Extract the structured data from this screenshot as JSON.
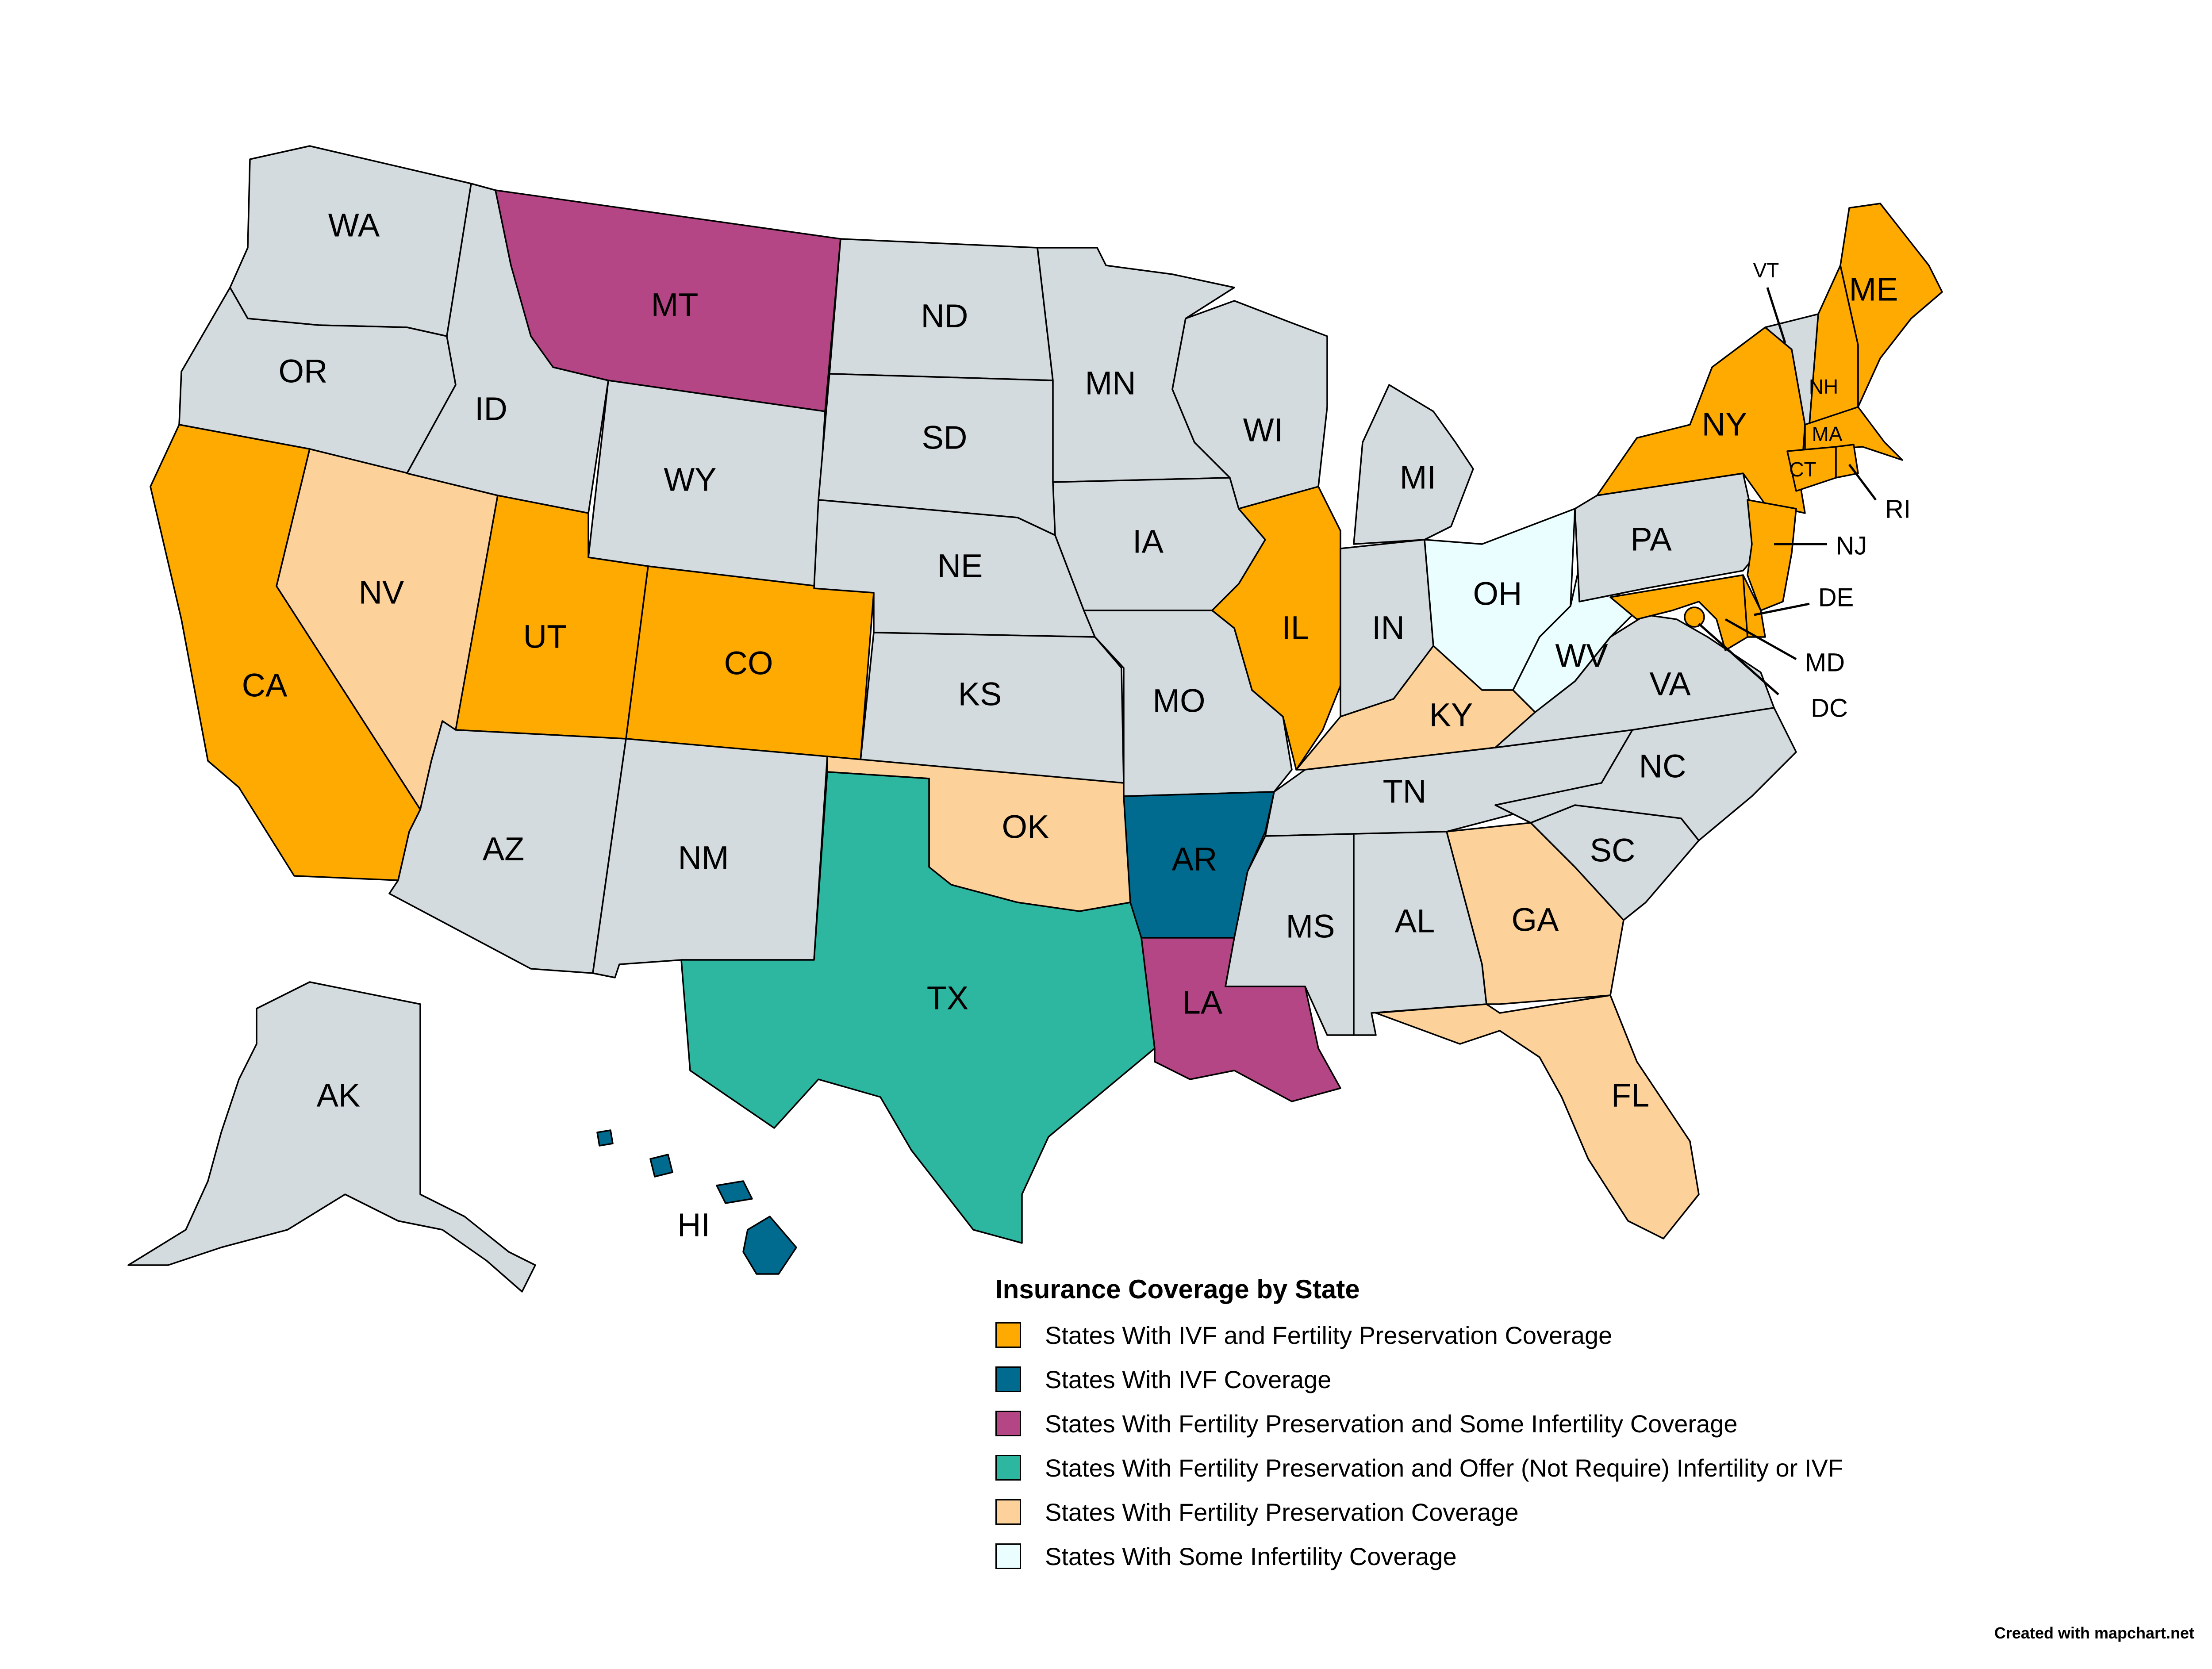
{
  "legend": {
    "title": "Insurance Coverage by State",
    "items": [
      {
        "key": "ivf_fp",
        "label": "States With IVF and Fertility Preservation Coverage",
        "color": "#FFAA00"
      },
      {
        "key": "ivf",
        "label": "States With IVF Coverage",
        "color": "#006B8F"
      },
      {
        "key": "fp_some",
        "label": "States With Fertility Preservation and Some Infertility Coverage",
        "color": "#B44685"
      },
      {
        "key": "fp_offer",
        "label": "States With Fertility Preservation and Offer (Not Require) Infertility or IVF",
        "color": "#2DB7A1"
      },
      {
        "key": "fp",
        "label": "States With Fertility Preservation Coverage",
        "color": "#FCD29A"
      },
      {
        "key": "some",
        "label": "States With Some Infertility Coverage",
        "color": "#EAFEFF"
      }
    ]
  },
  "default_color": "#D3DBDE",
  "states": {
    "WA": {
      "label": "WA",
      "category": "none"
    },
    "OR": {
      "label": "OR",
      "category": "none"
    },
    "CA": {
      "label": "CA",
      "category": "ivf_fp"
    },
    "NV": {
      "label": "NV",
      "category": "fp"
    },
    "ID": {
      "label": "ID",
      "category": "none"
    },
    "MT": {
      "label": "MT",
      "category": "fp_some"
    },
    "WY": {
      "label": "WY",
      "category": "none"
    },
    "UT": {
      "label": "UT",
      "category": "ivf_fp"
    },
    "CO": {
      "label": "CO",
      "category": "ivf_fp"
    },
    "AZ": {
      "label": "AZ",
      "category": "none"
    },
    "NM": {
      "label": "NM",
      "category": "none"
    },
    "ND": {
      "label": "ND",
      "category": "none"
    },
    "SD": {
      "label": "SD",
      "category": "none"
    },
    "NE": {
      "label": "NE",
      "category": "none"
    },
    "KS": {
      "label": "KS",
      "category": "none"
    },
    "OK": {
      "label": "OK",
      "category": "fp"
    },
    "TX": {
      "label": "TX",
      "category": "fp_offer"
    },
    "MN": {
      "label": "MN",
      "category": "none"
    },
    "IA": {
      "label": "IA",
      "category": "none"
    },
    "MO": {
      "label": "MO",
      "category": "none"
    },
    "AR": {
      "label": "AR",
      "category": "ivf"
    },
    "LA": {
      "label": "LA",
      "category": "fp_some"
    },
    "WI": {
      "label": "WI",
      "category": "none"
    },
    "IL": {
      "label": "IL",
      "category": "ivf_fp"
    },
    "MI": {
      "label": "MI",
      "category": "none"
    },
    "IN": {
      "label": "IN",
      "category": "none"
    },
    "OH": {
      "label": "OH",
      "category": "some"
    },
    "KY": {
      "label": "KY",
      "category": "fp"
    },
    "TN": {
      "label": "TN",
      "category": "none"
    },
    "MS": {
      "label": "MS",
      "category": "none"
    },
    "AL": {
      "label": "AL",
      "category": "none"
    },
    "GA": {
      "label": "GA",
      "category": "fp"
    },
    "FL": {
      "label": "FL",
      "category": "fp"
    },
    "SC": {
      "label": "SC",
      "category": "none"
    },
    "NC": {
      "label": "NC",
      "category": "none"
    },
    "VA": {
      "label": "VA",
      "category": "none"
    },
    "WV": {
      "label": "WV",
      "category": "some"
    },
    "PA": {
      "label": "PA",
      "category": "none"
    },
    "NY": {
      "label": "NY",
      "category": "ivf_fp"
    },
    "VT": {
      "label": "VT",
      "category": "none"
    },
    "NH": {
      "label": "NH",
      "category": "ivf_fp"
    },
    "ME": {
      "label": "ME",
      "category": "ivf_fp"
    },
    "MA": {
      "label": "MA",
      "category": "ivf_fp"
    },
    "RI": {
      "label": "RI",
      "category": "ivf_fp"
    },
    "CT": {
      "label": "CT",
      "category": "ivf_fp"
    },
    "NJ": {
      "label": "NJ",
      "category": "ivf_fp"
    },
    "DE": {
      "label": "DE",
      "category": "ivf_fp"
    },
    "MD": {
      "label": "MD",
      "category": "ivf_fp"
    },
    "DC": {
      "label": "DC",
      "category": "ivf_fp"
    },
    "AK": {
      "label": "AK",
      "category": "none"
    },
    "HI": {
      "label": "HI",
      "category": "ivf"
    }
  },
  "credit": "Created with mapchart.net"
}
